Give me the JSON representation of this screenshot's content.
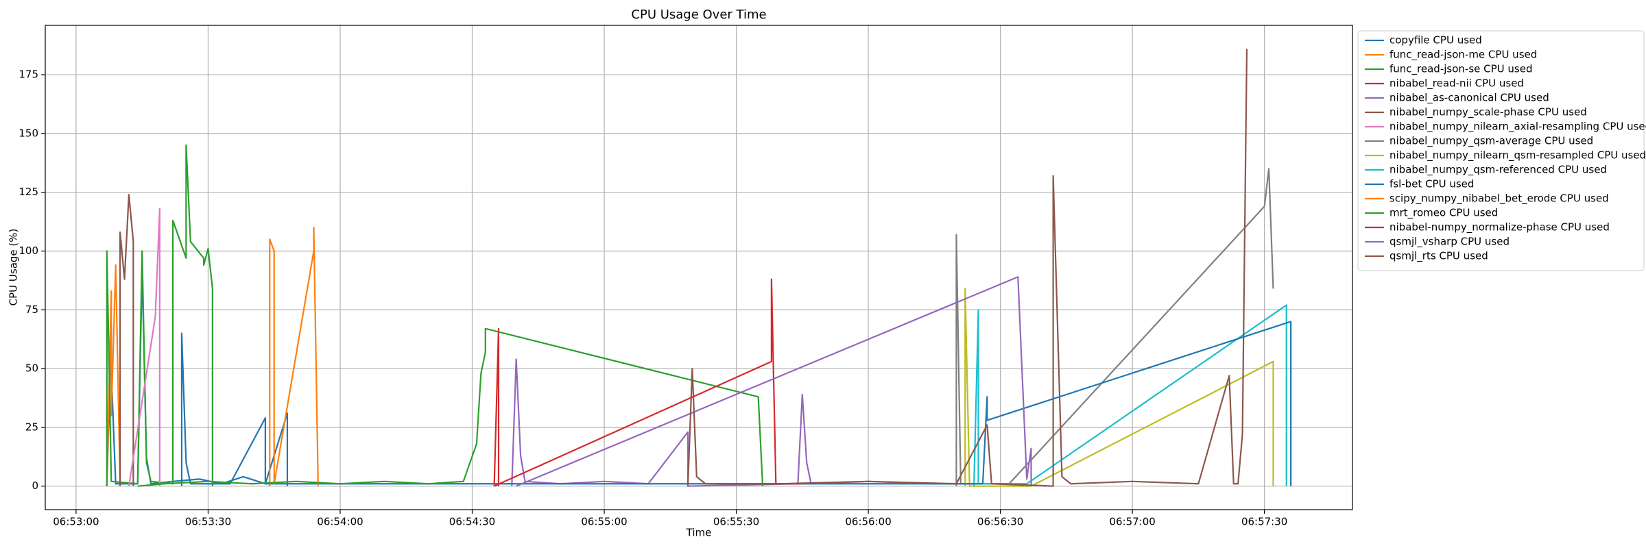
{
  "chart_data": {
    "type": "line",
    "title": "CPU Usage Over Time",
    "x_label": "Time",
    "y_label": "CPU Usage (%)",
    "xlim": [
      "06:52:53",
      "06:57:50"
    ],
    "ylim": [
      -10,
      196
    ],
    "xticks": [
      "06:53:00",
      "06:53:30",
      "06:54:00",
      "06:54:30",
      "06:55:00",
      "06:55:30",
      "06:56:00",
      "06:56:30",
      "06:57:00",
      "06:57:30"
    ],
    "yticks": [
      0,
      25,
      50,
      75,
      100,
      125,
      150,
      175
    ],
    "grid": true,
    "legend_position": "outside-upper-right",
    "series": [
      {
        "name": "copyfile CPU used",
        "color": "#1f77b4",
        "x": [
          "06:53:07",
          "06:53:08",
          "06:53:08",
          "06:53:09",
          "06:53:14",
          "06:53:15",
          "06:53:16",
          "06:53:17",
          "06:53:22",
          "06:53:28",
          "06:53:33",
          "06:53:38",
          "06:53:43",
          "06:53:48",
          "06:53:48"
        ],
        "values": [
          0,
          68,
          49,
          1,
          1,
          92,
          12,
          1,
          2,
          3,
          1,
          4,
          1,
          31,
          0
        ]
      },
      {
        "name": "func_read-json-me CPU used",
        "color": "#ff7f0e",
        "x": [
          "06:53:07",
          "06:53:08",
          "06:53:08",
          "06:53:09",
          "06:53:10"
        ],
        "values": [
          0,
          83,
          30,
          94,
          1
        ]
      },
      {
        "name": "func_read-json-se CPU used",
        "color": "#2ca02c",
        "x": [
          "06:53:07",
          "06:53:07",
          "06:53:08",
          "06:53:14",
          "06:53:15",
          "06:53:16",
          "06:53:17",
          "06:53:22",
          "06:53:22",
          "06:53:25",
          "06:53:25",
          "06:53:26",
          "06:53:29",
          "06:53:29",
          "06:53:30",
          "06:53:31",
          "06:53:31"
        ],
        "values": [
          0,
          100,
          2,
          1,
          100,
          10,
          2,
          1,
          113,
          97,
          145,
          104,
          97,
          94,
          101,
          84,
          0
        ]
      },
      {
        "name": "nibabel_read-nii CPU used",
        "color": "#d62728",
        "x": [
          "06:54:35",
          "06:54:36",
          "06:54:36"
        ],
        "values": [
          0,
          67,
          0
        ]
      },
      {
        "name": "nibabel_as-canonical CPU used",
        "color": "#9467bd",
        "x": [
          "06:54:39",
          "06:54:40",
          "06:54:41",
          "06:54:42",
          "06:54:50",
          "06:55:00",
          "06:55:10",
          "06:55:19",
          "06:55:19",
          "06:55:44",
          "06:55:45",
          "06:55:46",
          "06:55:47",
          "06:56:00",
          "06:56:15",
          "06:56:32"
        ],
        "values": [
          0,
          54,
          13,
          2,
          1,
          2,
          1,
          23,
          0,
          1,
          39,
          10,
          1,
          2,
          1,
          1
        ]
      },
      {
        "name": "nibabel_numpy_scale-phase CPU used",
        "color": "#8c564b",
        "x": [
          "06:53:10",
          "06:53:10",
          "06:53:11",
          "06:53:12",
          "06:53:13",
          "06:53:13"
        ],
        "values": [
          0,
          108,
          88,
          124,
          104,
          0
        ]
      },
      {
        "name": "nibabel_numpy_nilearn_axial-resampling CPU used",
        "color": "#e377c2",
        "x": [
          "06:53:12",
          "06:53:18",
          "06:53:19",
          "06:53:19"
        ],
        "values": [
          0,
          72,
          118,
          0
        ]
      },
      {
        "name": "nibabel_numpy_qsm-average CPU used",
        "color": "#7f7f7f",
        "x": [
          "06:56:20",
          "06:56:20",
          "06:56:21",
          "06:56:32",
          "06:57:30",
          "06:57:31",
          "06:57:32"
        ],
        "values": [
          0,
          107,
          1,
          1,
          119,
          135,
          84
        ]
      },
      {
        "name": "nibabel_numpy_nilearn_qsm-resampled CPU used",
        "color": "#bcbd22",
        "x": [
          "06:56:22",
          "06:56:22",
          "06:56:23",
          "06:56:37",
          "06:57:32",
          "06:57:32"
        ],
        "values": [
          0,
          84,
          0,
          0,
          53,
          0
        ]
      },
      {
        "name": "nibabel_numpy_qsm-referenced CPU used",
        "color": "#17becf",
        "x": [
          "06:56:24",
          "06:56:25",
          "06:56:25",
          "06:56:36",
          "06:57:35",
          "06:57:35"
        ],
        "values": [
          0,
          75,
          1,
          1,
          77,
          0
        ]
      },
      {
        "name": "fsl-bet CPU used",
        "color": "#1f77b4",
        "x": [
          "06:53:24",
          "06:53:24",
          "06:53:25",
          "06:53:26",
          "06:53:35",
          "06:53:43",
          "06:53:43",
          "06:56:26",
          "06:56:27",
          "06:56:27",
          "06:57:36",
          "06:57:36"
        ],
        "values": [
          0,
          65,
          10,
          1,
          1,
          29,
          1,
          1,
          38,
          28,
          70,
          0
        ]
      },
      {
        "name": "scipy_numpy_nibabel_bet_erode CPU used",
        "color": "#ff7f0e",
        "x": [
          "06:53:44",
          "06:53:44",
          "06:53:45",
          "06:53:45",
          "06:53:54",
          "06:53:54",
          "06:53:55"
        ],
        "values": [
          0,
          105,
          100,
          1,
          100,
          110,
          0
        ]
      },
      {
        "name": "mrt_romeo CPU used",
        "color": "#2ca02c",
        "x": [
          "06:53:14",
          "06:53:20",
          "06:53:30",
          "06:53:40",
          "06:53:50",
          "06:54:00",
          "06:54:10",
          "06:54:20",
          "06:54:28",
          "06:54:31",
          "06:54:32",
          "06:54:33",
          "06:54:33",
          "06:55:35",
          "06:55:36"
        ],
        "values": [
          0,
          1,
          2,
          1,
          2,
          1,
          2,
          1,
          2,
          18,
          48,
          57,
          67,
          38,
          0
        ]
      },
      {
        "name": "nibabel-numpy_normalize-phase CPU used",
        "color": "#d62728",
        "x": [
          "06:54:35",
          "06:55:38",
          "06:55:38",
          "06:55:39",
          "06:55:45"
        ],
        "values": [
          0,
          53,
          88,
          1,
          1
        ]
      },
      {
        "name": "qsmjl_vsharp CPU used",
        "color": "#9467bd",
        "x": [
          "06:54:40",
          "06:56:34",
          "06:56:36",
          "06:56:37",
          "06:56:37"
        ],
        "values": [
          0,
          89,
          3,
          16,
          0
        ]
      },
      {
        "name": "qsmjl_rts CPU used",
        "color": "#8c564b",
        "x": [
          "06:55:19",
          "06:55:20",
          "06:55:21",
          "06:55:23",
          "06:55:40",
          "06:56:00",
          "06:56:20",
          "06:56:27",
          "06:56:28",
          "06:56:42",
          "06:56:42",
          "06:56:44",
          "06:56:46",
          "06:57:00",
          "06:57:15",
          "06:57:22",
          "06:57:23",
          "06:57:24",
          "06:57:25",
          "06:57:26"
        ],
        "values": [
          0,
          50,
          4,
          1,
          1,
          2,
          1,
          26,
          1,
          0,
          132,
          4,
          1,
          2,
          1,
          47,
          1,
          1,
          22,
          186
        ]
      }
    ]
  }
}
